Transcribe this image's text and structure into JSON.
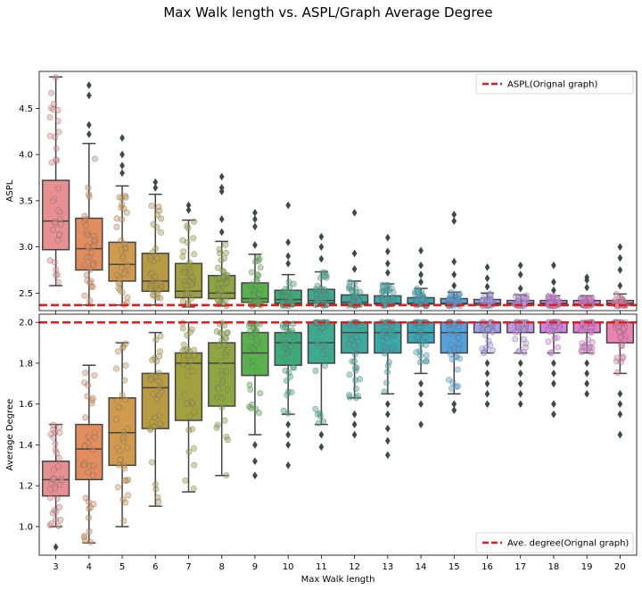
{
  "figure": {
    "title": "Max Walk length vs. ASPL/Graph Average Degree"
  },
  "chart_data": [
    {
      "type": "box",
      "xlabel": "",
      "ylabel": "ASPL",
      "ylim": [
        2.31,
        4.9
      ],
      "yticks": [
        2.5,
        3.0,
        3.5,
        4.0,
        4.5
      ],
      "categories": [
        "3",
        "4",
        "5",
        "6",
        "7",
        "8",
        "9",
        "10",
        "11",
        "12",
        "13",
        "14",
        "15",
        "16",
        "17",
        "18",
        "19",
        "20"
      ],
      "legend": {
        "label": "ASPL(Orignal graph)",
        "position": "top-right"
      },
      "reference_line": {
        "y": 2.37,
        "color": "#e41a1c",
        "style": "dashed"
      },
      "boxes": [
        {
          "x": "3",
          "whislo": 2.58,
          "q1": 2.97,
          "med": 3.28,
          "q3": 3.72,
          "whishi": 4.84,
          "fliers": []
        },
        {
          "x": "4",
          "whislo": 2.37,
          "q1": 2.75,
          "med": 2.98,
          "q3": 3.31,
          "whishi": 4.12,
          "fliers": [
            4.22,
            4.32,
            4.64,
            4.75
          ]
        },
        {
          "x": "5",
          "whislo": 2.37,
          "q1": 2.63,
          "med": 2.81,
          "q3": 3.05,
          "whishi": 3.66,
          "fliers": [
            3.8,
            3.88,
            4.0,
            4.18
          ]
        },
        {
          "x": "6",
          "whislo": 2.37,
          "q1": 2.52,
          "med": 2.63,
          "q3": 2.93,
          "whishi": 3.57,
          "fliers": [
            3.64,
            3.7
          ]
        },
        {
          "x": "7",
          "whislo": 2.35,
          "q1": 2.45,
          "med": 2.52,
          "q3": 2.82,
          "whishi": 3.29,
          "fliers": [
            3.4,
            3.45
          ]
        },
        {
          "x": "8",
          "whislo": 2.36,
          "q1": 2.44,
          "med": 2.5,
          "q3": 2.69,
          "whishi": 3.06,
          "fliers": [
            3.16,
            3.3,
            3.6,
            3.64,
            3.76
          ]
        },
        {
          "x": "9",
          "whislo": 2.36,
          "q1": 2.4,
          "med": 2.44,
          "q3": 2.61,
          "whishi": 2.92,
          "fliers": [
            3.02,
            3.22,
            3.3,
            3.37
          ]
        },
        {
          "x": "10",
          "whislo": 2.36,
          "q1": 2.39,
          "med": 2.43,
          "q3": 2.53,
          "whishi": 2.7,
          "fliers": [
            2.82,
            2.9,
            3.05,
            3.45
          ]
        },
        {
          "x": "11",
          "whislo": 2.36,
          "q1": 2.39,
          "med": 2.42,
          "q3": 2.54,
          "whishi": 2.73,
          "fliers": [
            2.87,
            3.0,
            3.11
          ]
        },
        {
          "x": "12",
          "whislo": 2.36,
          "q1": 2.38,
          "med": 2.4,
          "q3": 2.48,
          "whishi": 2.63,
          "fliers": [
            2.76,
            2.93,
            3.37
          ]
        },
        {
          "x": "13",
          "whislo": 2.36,
          "q1": 2.38,
          "med": 2.39,
          "q3": 2.47,
          "whishi": 2.6,
          "fliers": [
            2.72,
            2.82,
            2.95,
            3.1
          ]
        },
        {
          "x": "14",
          "whislo": 2.36,
          "q1": 2.38,
          "med": 2.39,
          "q3": 2.45,
          "whishi": 2.55,
          "fliers": [
            2.62,
            2.7,
            2.8,
            2.96
          ]
        },
        {
          "x": "15",
          "whislo": 2.36,
          "q1": 2.38,
          "med": 2.39,
          "q3": 2.44,
          "whishi": 2.51,
          "fliers": [
            2.58,
            2.7,
            2.84,
            3.28,
            3.35
          ]
        },
        {
          "x": "16",
          "whislo": 2.36,
          "q1": 2.37,
          "med": 2.39,
          "q3": 2.43,
          "whishi": 2.5,
          "fliers": [
            2.57,
            2.66,
            2.78
          ]
        },
        {
          "x": "17",
          "whislo": 2.36,
          "q1": 2.37,
          "med": 2.39,
          "q3": 2.42,
          "whishi": 2.48,
          "fliers": [
            2.55,
            2.7,
            2.8
          ]
        },
        {
          "x": "18",
          "whislo": 2.36,
          "q1": 2.37,
          "med": 2.39,
          "q3": 2.42,
          "whishi": 2.47,
          "fliers": [
            2.53,
            2.62,
            2.8
          ]
        },
        {
          "x": "19",
          "whislo": 2.36,
          "q1": 2.37,
          "med": 2.38,
          "q3": 2.42,
          "whishi": 2.47,
          "fliers": [
            2.56,
            2.64,
            2.67
          ]
        },
        {
          "x": "20",
          "whislo": 2.36,
          "q1": 2.37,
          "med": 2.39,
          "q3": 2.42,
          "whishi": 2.49,
          "fliers": [
            2.58,
            2.75,
            2.88,
            3.0
          ]
        }
      ]
    },
    {
      "type": "box",
      "xlabel": "Max Walk length",
      "ylabel": "Average Degree",
      "ylim": [
        0.86,
        2.04
      ],
      "yticks": [
        1.0,
        1.2,
        1.4,
        1.6,
        1.8,
        2.0
      ],
      "categories": [
        "3",
        "4",
        "5",
        "6",
        "7",
        "8",
        "9",
        "10",
        "11",
        "12",
        "13",
        "14",
        "15",
        "16",
        "17",
        "18",
        "19",
        "20"
      ],
      "legend": {
        "label": "Ave. degree(Orignal graph)",
        "position": "bottom-right"
      },
      "reference_line": {
        "y": 2.0,
        "color": "#e41a1c",
        "style": "dashed"
      },
      "boxes": [
        {
          "x": "3",
          "whislo": 1.0,
          "q1": 1.15,
          "med": 1.23,
          "q3": 1.32,
          "whishi": 1.5,
          "fliers": [
            0.9
          ]
        },
        {
          "x": "4",
          "whislo": 0.92,
          "q1": 1.23,
          "med": 1.38,
          "q3": 1.5,
          "whishi": 1.79,
          "fliers": []
        },
        {
          "x": "5",
          "whislo": 1.0,
          "q1": 1.3,
          "med": 1.46,
          "q3": 1.63,
          "whishi": 1.9,
          "fliers": []
        },
        {
          "x": "6",
          "whislo": 1.1,
          "q1": 1.48,
          "med": 1.68,
          "q3": 1.75,
          "whishi": 1.95,
          "fliers": []
        },
        {
          "x": "7",
          "whislo": 1.17,
          "q1": 1.52,
          "med": 1.8,
          "q3": 1.85,
          "whishi": 2.0,
          "fliers": []
        },
        {
          "x": "8",
          "whislo": 1.25,
          "q1": 1.59,
          "med": 1.8,
          "q3": 1.9,
          "whishi": 2.0,
          "fliers": []
        },
        {
          "x": "9",
          "whislo": 1.45,
          "q1": 1.74,
          "med": 1.85,
          "q3": 1.95,
          "whishi": 2.0,
          "fliers": [
            1.25,
            1.32,
            1.4
          ]
        },
        {
          "x": "10",
          "whislo": 1.55,
          "q1": 1.79,
          "med": 1.9,
          "q3": 1.95,
          "whishi": 2.0,
          "fliers": [
            1.3,
            1.4,
            1.45,
            1.5
          ]
        },
        {
          "x": "11",
          "whislo": 1.5,
          "q1": 1.8,
          "med": 1.9,
          "q3": 2.0,
          "whishi": 2.0,
          "fliers": [
            1.39,
            1.45
          ]
        },
        {
          "x": "12",
          "whislo": 1.63,
          "q1": 1.85,
          "med": 1.95,
          "q3": 2.0,
          "whishi": 2.0,
          "fliers": [
            1.45,
            1.5,
            1.55
          ]
        },
        {
          "x": "13",
          "whislo": 1.65,
          "q1": 1.85,
          "med": 1.95,
          "q3": 2.0,
          "whishi": 2.0,
          "fliers": [
            1.35,
            1.42,
            1.48,
            1.55,
            1.6
          ]
        },
        {
          "x": "14",
          "whislo": 1.75,
          "q1": 1.9,
          "med": 1.95,
          "q3": 2.0,
          "whishi": 2.0,
          "fliers": [
            1.5,
            1.6,
            1.65,
            1.7
          ]
        },
        {
          "x": "15",
          "whislo": 1.65,
          "q1": 1.85,
          "med": 1.95,
          "q3": 2.0,
          "whishi": 2.0,
          "fliers": [
            1.57,
            1.6
          ]
        },
        {
          "x": "16",
          "whislo": 1.85,
          "q1": 1.95,
          "med": 2.0,
          "q3": 2.0,
          "whishi": 2.0,
          "fliers": [
            1.6,
            1.65,
            1.7,
            1.75,
            1.8
          ]
        },
        {
          "x": "17",
          "whislo": 1.85,
          "q1": 1.95,
          "med": 2.0,
          "q3": 2.0,
          "whishi": 2.0,
          "fliers": [
            1.6,
            1.65,
            1.7,
            1.75,
            1.8
          ]
        },
        {
          "x": "18",
          "whislo": 1.85,
          "q1": 1.95,
          "med": 2.0,
          "q3": 2.0,
          "whishi": 2.0,
          "fliers": [
            1.55,
            1.6,
            1.7,
            1.75,
            1.8
          ]
        },
        {
          "x": "19",
          "whislo": 1.85,
          "q1": 1.95,
          "med": 2.0,
          "q3": 2.0,
          "whishi": 2.0,
          "fliers": [
            1.65,
            1.7,
            1.75,
            1.8
          ]
        },
        {
          "x": "20",
          "whislo": 1.75,
          "q1": 1.9,
          "med": 2.0,
          "q3": 2.0,
          "whishi": 2.0,
          "fliers": [
            1.45,
            1.55,
            1.6,
            1.65
          ]
        }
      ]
    }
  ],
  "colors": [
    "#e88f91",
    "#e18d5e",
    "#d19b4d",
    "#b89b43",
    "#a2a13f",
    "#8ea642",
    "#59b14e",
    "#3daa79",
    "#3eab90",
    "#3ea99d",
    "#3aa9ab",
    "#3aa8b9",
    "#55a2dd",
    "#a39ff0",
    "#c096e8",
    "#d486e6",
    "#e37ed5",
    "#ec82b3"
  ],
  "reference_color": "#e41a1c"
}
